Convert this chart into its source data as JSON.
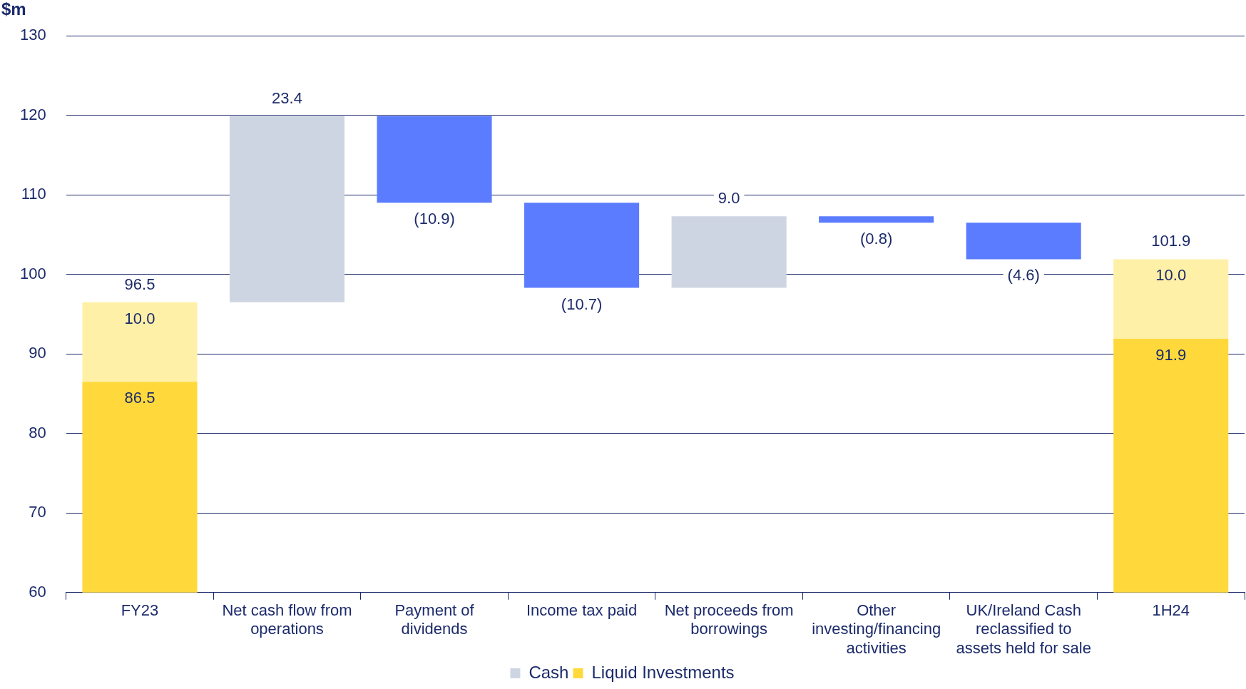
{
  "chart_data": {
    "type": "bar",
    "ylabel": "$m",
    "grid": "y",
    "legend": "bottom",
    "categories": [
      "FY23",
      "Net cash flow from operations",
      "Payment of dividends",
      "Income tax paid",
      "Net proceeds from borrowings",
      "Other investing/financing activities",
      "UK/Ireland Cash reclassified to assets held for sale",
      "1H24"
    ],
    "ylim": [
      60,
      130
    ],
    "yticks": [
      60,
      70,
      80,
      90,
      100,
      110,
      120,
      130
    ],
    "series": [
      {
        "name": "Liquid Investments",
        "color": "#ffd93b",
        "values": [
          86.5,
          null,
          null,
          null,
          null,
          null,
          null,
          91.9
        ],
        "value_labels": [
          "86.5",
          null,
          null,
          null,
          null,
          null,
          null,
          "91.9"
        ]
      },
      {
        "color": "#fff0a8",
        "values": [
          10.0,
          null,
          null,
          null,
          null,
          null,
          null,
          10.0
        ],
        "base": [
          86.5,
          null,
          null,
          null,
          null,
          null,
          null,
          91.9
        ],
        "value_labels": [
          "10.0",
          null,
          null,
          null,
          null,
          null,
          null,
          "10.0"
        ]
      },
      {
        "name": "Cash",
        "color": "#ced5e2",
        "values": [
          null,
          23.4,
          null,
          null,
          9.0,
          null,
          null,
          null
        ],
        "base": [
          null,
          96.5,
          null,
          null,
          98.3,
          null,
          null,
          null
        ],
        "value_labels": [
          null,
          "23.4",
          null,
          null,
          "9.0",
          null,
          null,
          null
        ]
      },
      {
        "color": "#5b7cff",
        "values": [
          null,
          null,
          -10.9,
          -10.7,
          null,
          -0.8,
          -4.6,
          null
        ],
        "base": [
          null,
          null,
          119.9,
          109.0,
          null,
          107.3,
          106.5,
          null
        ],
        "value_labels": [
          null,
          null,
          "(10.9)",
          "(10.7)",
          null,
          "(0.8)",
          "(4.6)",
          null
        ]
      }
    ],
    "totals": [
      "96.5",
      null,
      null,
      null,
      null,
      null,
      null,
      "101.9"
    ]
  }
}
